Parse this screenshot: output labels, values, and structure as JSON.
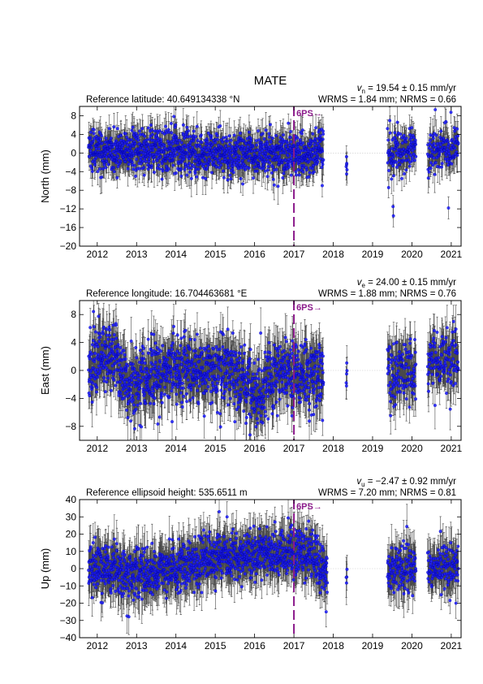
{
  "station": "MATE",
  "colors": {
    "errorbar": "#4a4a4a",
    "point": "#1a1aff",
    "point_edge": "#0000aa",
    "event": "#8b1a8b",
    "zero_line": "#c8c8c8"
  },
  "x_ticks": [
    {
      "label": "2012",
      "t": 2012.0
    },
    {
      "label": "2013",
      "t": 2013.0
    },
    {
      "label": "2014",
      "t": 2014.0
    },
    {
      "label": "2015",
      "t": 2015.0
    },
    {
      "label": "2016",
      "t": 2016.0
    },
    {
      "label": "2017",
      "t": 2017.0
    },
    {
      "label": "2018",
      "t": 2018.0
    },
    {
      "label": "2019",
      "t": 2019.0
    },
    {
      "label": "2020",
      "t": 2020.0
    },
    {
      "label": "2021",
      "t": 2021.0
    }
  ],
  "event": {
    "label": "6PS",
    "arrow": "→",
    "t": 2017.0
  },
  "chart_data": [
    {
      "type": "scatter",
      "component": "north",
      "ylabel": "North (mm)",
      "ylim": [
        -20,
        10
      ],
      "yticks": [
        8,
        4,
        0,
        -4,
        -8,
        -12,
        -16,
        -20
      ],
      "xlim": [
        2011.55,
        2021.25
      ],
      "reference": "Reference latitude: 40.649134338 °N",
      "velocity_symbol": "v",
      "velocity_sub": "n",
      "velocity_text": " = 19.54 ± 0.15 mm/yr",
      "stats": "WRMS = 1.84 mm; NRMS = 0.66",
      "noise_amp": 2.3,
      "err_amp": 3.0,
      "segments": [
        {
          "t0": 2011.78,
          "t1": 2017.75,
          "n": 1300
        },
        {
          "t0": 2018.33,
          "t1": 2018.35,
          "n": 4
        },
        {
          "t0": 2019.38,
          "t1": 2020.1,
          "n": 130
        },
        {
          "t0": 2020.4,
          "t1": 2021.18,
          "n": 130
        }
      ],
      "trend": [
        [
          2011.75,
          0.5
        ],
        [
          2014.0,
          0.5
        ],
        [
          2016.0,
          -0.5
        ],
        [
          2017.7,
          0.0
        ],
        [
          2020.1,
          0.5
        ],
        [
          2021.2,
          1.0
        ]
      ],
      "outliers": [
        [
          2017.72,
          -7.0
        ],
        [
          2018.34,
          -2.5
        ],
        [
          2018.34,
          -4.5
        ],
        [
          2019.52,
          -11.5
        ],
        [
          2019.53,
          -13.5
        ],
        [
          2020.93,
          -11.8
        ]
      ]
    },
    {
      "type": "scatter",
      "component": "east",
      "ylabel": "East (mm)",
      "ylim": [
        -10,
        10
      ],
      "yticks": [
        8,
        4,
        0,
        -4,
        -8
      ],
      "xlim": [
        2011.55,
        2021.25
      ],
      "reference": "Reference longitude: 16.704463681 °E",
      "velocity_symbol": "v",
      "velocity_sub": "e",
      "velocity_text": " = 24.00 ± 0.15 mm/yr",
      "stats": "WRMS = 1.88 mm; NRMS = 0.76",
      "noise_amp": 2.4,
      "err_amp": 2.9,
      "segments": [
        {
          "t0": 2011.78,
          "t1": 2017.75,
          "n": 1300
        },
        {
          "t0": 2018.33,
          "t1": 2018.35,
          "n": 4
        },
        {
          "t0": 2019.38,
          "t1": 2020.1,
          "n": 130
        },
        {
          "t0": 2020.4,
          "t1": 2021.18,
          "n": 130
        }
      ],
      "trend": [
        [
          2011.75,
          0.0
        ],
        [
          2012.3,
          2.5
        ],
        [
          2012.9,
          -2.0
        ],
        [
          2014.0,
          0.5
        ],
        [
          2015.5,
          -0.5
        ],
        [
          2016.1,
          -3.5
        ],
        [
          2016.6,
          0.0
        ],
        [
          2017.7,
          -0.5
        ],
        [
          2020.1,
          0.0
        ],
        [
          2021.2,
          2.5
        ]
      ],
      "outliers": [
        [
          2016.95,
          -6.5
        ],
        [
          2017.5,
          -6.3
        ],
        [
          2021.06,
          7.0
        ],
        [
          2018.34,
          -0.5
        ]
      ]
    },
    {
      "type": "scatter",
      "component": "up",
      "ylabel": "Up (mm)",
      "ylim": [
        -40,
        40
      ],
      "yticks": [
        40,
        30,
        20,
        10,
        0,
        -10,
        -20,
        -30,
        -40
      ],
      "xlim": [
        2011.55,
        2021.25
      ],
      "reference": "Reference ellipsoid height: 535.6511 m",
      "velocity_symbol": "v",
      "velocity_sub": "u",
      "velocity_text": " = −2.47 ± 0.92 mm/yr",
      "stats": "WRMS = 7.20 mm; NRMS = 0.81",
      "noise_amp": 7.0,
      "err_amp": 11.0,
      "segments": [
        {
          "t0": 2011.78,
          "t1": 2017.85,
          "n": 1300
        },
        {
          "t0": 2018.33,
          "t1": 2018.35,
          "n": 4
        },
        {
          "t0": 2019.38,
          "t1": 2020.1,
          "n": 130
        },
        {
          "t0": 2020.4,
          "t1": 2021.18,
          "n": 130
        }
      ],
      "trend": [
        [
          2011.75,
          0.0
        ],
        [
          2013.0,
          -3.0
        ],
        [
          2014.5,
          2.0
        ],
        [
          2015.0,
          8.0
        ],
        [
          2016.0,
          8.0
        ],
        [
          2017.0,
          10.0
        ],
        [
          2017.5,
          8.0
        ],
        [
          2017.85,
          -5.0
        ],
        [
          2019.4,
          -2.0
        ],
        [
          2020.1,
          1.0
        ],
        [
          2021.2,
          2.0
        ]
      ],
      "outliers": [
        [
          2015.1,
          33.0
        ],
        [
          2015.3,
          30.0
        ],
        [
          2017.82,
          -25.0
        ],
        [
          2021.12,
          -20.0
        ]
      ]
    }
  ]
}
